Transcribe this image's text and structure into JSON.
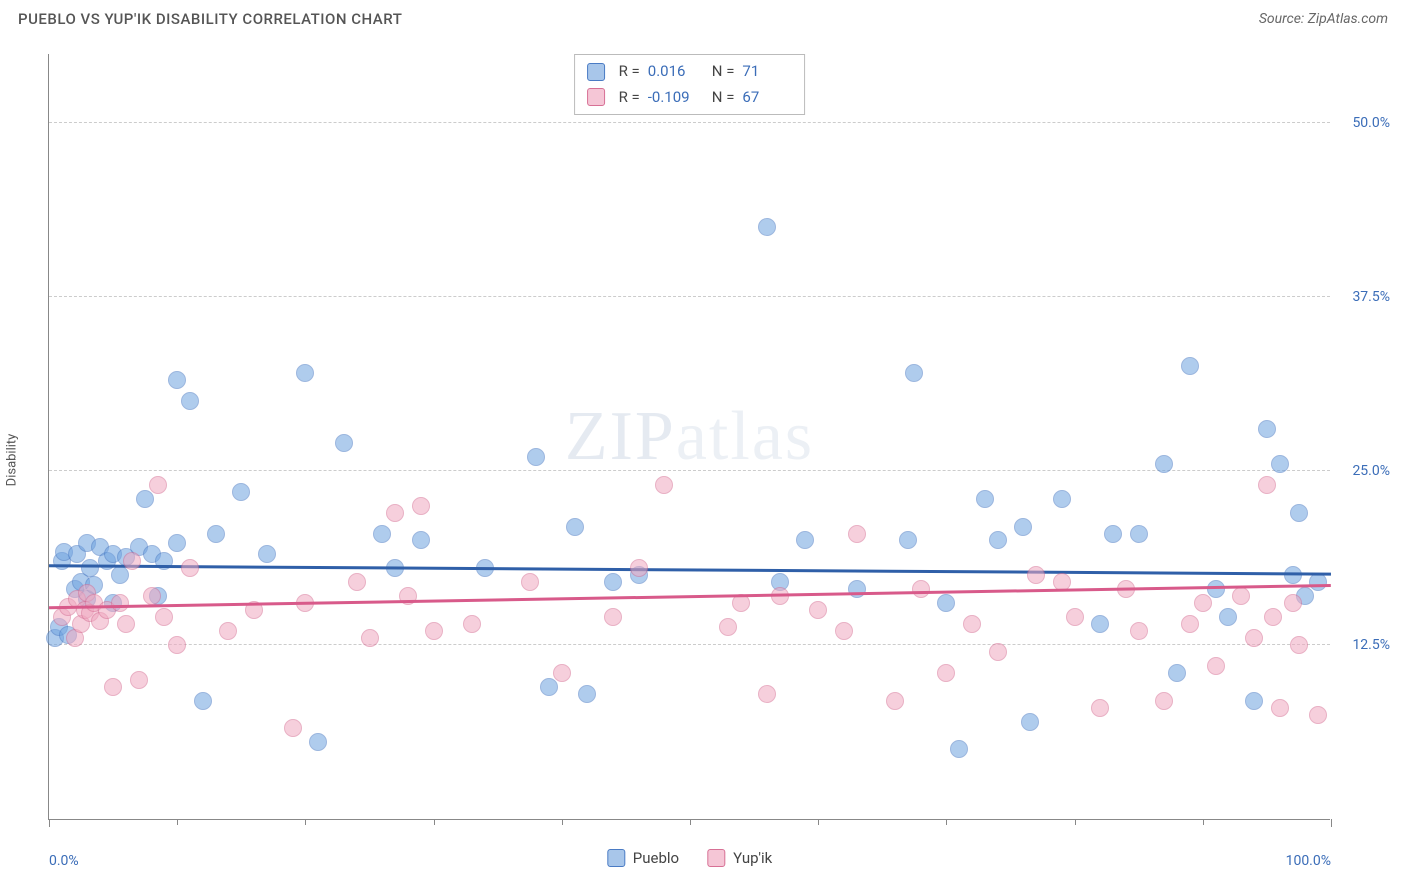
{
  "header": {
    "title": "PUEBLO VS YUP'IK DISABILITY CORRELATION CHART",
    "source_prefix": "Source: ",
    "source_name": "ZipAtlas.com"
  },
  "chart": {
    "type": "scatter",
    "ylabel": "Disability",
    "background_color": "#ffffff",
    "grid_color": "#cccccc",
    "axis_color": "#888888",
    "label_color": "#3b6db8",
    "xlim": [
      0,
      100
    ],
    "ylim": [
      0,
      55
    ],
    "yticks": [
      {
        "v": 12.5,
        "label": "12.5%"
      },
      {
        "v": 25.0,
        "label": "25.0%"
      },
      {
        "v": 37.5,
        "label": "37.5%"
      },
      {
        "v": 50.0,
        "label": "50.0%"
      }
    ],
    "xticks_major": [
      0,
      100
    ],
    "xtick_labels": {
      "0": "0.0%",
      "100": "100.0%"
    },
    "xticks_minor": [
      10,
      20,
      30,
      40,
      50,
      60,
      70,
      80,
      90
    ],
    "watermark": "ZIPatlas",
    "point_radius": 9,
    "point_border_width": 1.5,
    "point_fill_opacity": 0.35,
    "series": [
      {
        "name": "Pueblo",
        "color": "#6fa3e0",
        "border_color": "#4a7bc4",
        "trend": {
          "y_at_x0": 18.2,
          "y_at_x100": 18.8,
          "line_color": "#2f5fa8",
          "line_width": 2.5
        },
        "stats": {
          "R": "0.016",
          "N": "71"
        },
        "points": [
          [
            0.5,
            13.0
          ],
          [
            0.8,
            13.8
          ],
          [
            1.0,
            18.5
          ],
          [
            1.2,
            19.2
          ],
          [
            1.5,
            13.2
          ],
          [
            2.0,
            16.5
          ],
          [
            2.2,
            19.0
          ],
          [
            2.5,
            17.0
          ],
          [
            3.0,
            15.8
          ],
          [
            3.0,
            19.8
          ],
          [
            3.2,
            18.0
          ],
          [
            3.5,
            16.8
          ],
          [
            4.0,
            19.5
          ],
          [
            4.5,
            18.5
          ],
          [
            5.0,
            15.5
          ],
          [
            5.0,
            19.0
          ],
          [
            5.5,
            17.5
          ],
          [
            6.0,
            18.8
          ],
          [
            7.0,
            19.5
          ],
          [
            7.5,
            23.0
          ],
          [
            8.0,
            19.0
          ],
          [
            8.5,
            16.0
          ],
          [
            9.0,
            18.5
          ],
          [
            10.0,
            19.8
          ],
          [
            10.0,
            31.5
          ],
          [
            11.0,
            30.0
          ],
          [
            12.0,
            8.5
          ],
          [
            13.0,
            20.5
          ],
          [
            15.0,
            23.5
          ],
          [
            17.0,
            19.0
          ],
          [
            20.0,
            32.0
          ],
          [
            21.0,
            5.5
          ],
          [
            23.0,
            27.0
          ],
          [
            26.0,
            20.5
          ],
          [
            27.0,
            18.0
          ],
          [
            29.0,
            20.0
          ],
          [
            34.0,
            18.0
          ],
          [
            38.0,
            26.0
          ],
          [
            39.0,
            9.5
          ],
          [
            41.0,
            21.0
          ],
          [
            42.0,
            9.0
          ],
          [
            44.0,
            17.0
          ],
          [
            46.0,
            17.5
          ],
          [
            56.0,
            42.5
          ],
          [
            57.0,
            17.0
          ],
          [
            59.0,
            20.0
          ],
          [
            63.0,
            16.5
          ],
          [
            67.0,
            20.0
          ],
          [
            67.5,
            32.0
          ],
          [
            70.0,
            15.5
          ],
          [
            71.0,
            5.0
          ],
          [
            73.0,
            23.0
          ],
          [
            74.0,
            20.0
          ],
          [
            76.0,
            21.0
          ],
          [
            76.5,
            7.0
          ],
          [
            79.0,
            23.0
          ],
          [
            82.0,
            14.0
          ],
          [
            83.0,
            20.5
          ],
          [
            85.0,
            20.5
          ],
          [
            87.0,
            25.5
          ],
          [
            88.0,
            10.5
          ],
          [
            89.0,
            32.5
          ],
          [
            91.0,
            16.5
          ],
          [
            92.0,
            14.5
          ],
          [
            94.0,
            8.5
          ],
          [
            95.0,
            28.0
          ],
          [
            96.0,
            25.5
          ],
          [
            97.0,
            17.5
          ],
          [
            97.5,
            22.0
          ],
          [
            98.0,
            16.0
          ],
          [
            99.0,
            17.0
          ]
        ]
      },
      {
        "name": "Yup'ik",
        "color": "#f0a8c0",
        "border_color": "#d77095",
        "trend": {
          "y_at_x0": 15.2,
          "y_at_x100": 13.6,
          "line_color": "#d85a8a",
          "line_width": 2.5
        },
        "stats": {
          "R": "-0.109",
          "N": "67"
        },
        "points": [
          [
            1.0,
            14.5
          ],
          [
            1.5,
            15.2
          ],
          [
            2.0,
            13.0
          ],
          [
            2.2,
            15.8
          ],
          [
            2.5,
            14.0
          ],
          [
            2.8,
            15.0
          ],
          [
            3.0,
            16.2
          ],
          [
            3.2,
            14.8
          ],
          [
            3.5,
            15.5
          ],
          [
            4.0,
            14.2
          ],
          [
            4.5,
            15.0
          ],
          [
            5.0,
            9.5
          ],
          [
            5.5,
            15.5
          ],
          [
            6.0,
            14.0
          ],
          [
            6.5,
            18.5
          ],
          [
            7.0,
            10.0
          ],
          [
            8.0,
            16.0
          ],
          [
            8.5,
            24.0
          ],
          [
            9.0,
            14.5
          ],
          [
            10.0,
            12.5
          ],
          [
            11.0,
            18.0
          ],
          [
            14.0,
            13.5
          ],
          [
            16.0,
            15.0
          ],
          [
            19.0,
            6.5
          ],
          [
            20.0,
            15.5
          ],
          [
            24.0,
            17.0
          ],
          [
            25.0,
            13.0
          ],
          [
            27.0,
            22.0
          ],
          [
            28.0,
            16.0
          ],
          [
            29.0,
            22.5
          ],
          [
            30.0,
            13.5
          ],
          [
            33.0,
            14.0
          ],
          [
            37.5,
            17.0
          ],
          [
            40.0,
            10.5
          ],
          [
            44.0,
            14.5
          ],
          [
            46.0,
            18.0
          ],
          [
            48.0,
            24.0
          ],
          [
            53.0,
            13.8
          ],
          [
            54.0,
            15.5
          ],
          [
            56.0,
            9.0
          ],
          [
            57.0,
            16.0
          ],
          [
            60.0,
            15.0
          ],
          [
            62.0,
            13.5
          ],
          [
            63.0,
            20.5
          ],
          [
            66.0,
            8.5
          ],
          [
            68.0,
            16.5
          ],
          [
            70.0,
            10.5
          ],
          [
            72.0,
            14.0
          ],
          [
            74.0,
            12.0
          ],
          [
            77.0,
            17.5
          ],
          [
            79.0,
            17.0
          ],
          [
            80.0,
            14.5
          ],
          [
            82.0,
            8.0
          ],
          [
            84.0,
            16.5
          ],
          [
            85.0,
            13.5
          ],
          [
            87.0,
            8.5
          ],
          [
            89.0,
            14.0
          ],
          [
            90.0,
            15.5
          ],
          [
            91.0,
            11.0
          ],
          [
            93.0,
            16.0
          ],
          [
            94.0,
            13.0
          ],
          [
            95.0,
            24.0
          ],
          [
            95.5,
            14.5
          ],
          [
            96.0,
            8.0
          ],
          [
            97.0,
            15.5
          ],
          [
            97.5,
            12.5
          ],
          [
            99.0,
            7.5
          ]
        ]
      }
    ],
    "legend_bottom": [
      {
        "label": "Pueblo",
        "swatch": "#a8c6ea",
        "border": "#4a7bc4"
      },
      {
        "label": "Yup'ik",
        "swatch": "#f5c6d6",
        "border": "#d77095"
      }
    ],
    "stats_box": {
      "swatches": [
        "#a8c6ea",
        "#f5c6d6"
      ],
      "swatch_borders": [
        "#4a7bc4",
        "#d77095"
      ]
    }
  }
}
